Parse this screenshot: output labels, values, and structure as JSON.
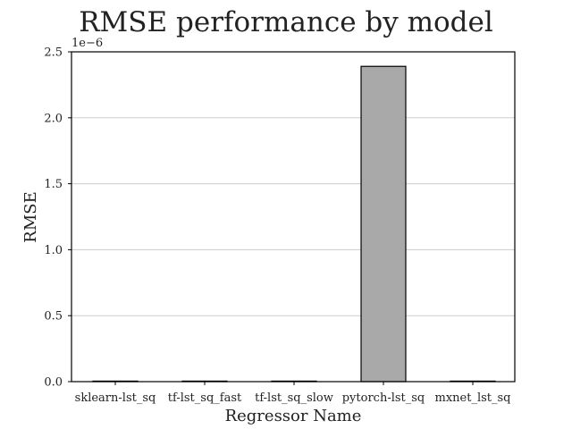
{
  "chart_data": {
    "type": "bar",
    "title": "RMSE performance by model",
    "xlabel": "Regressor Name",
    "ylabel": "RMSE",
    "y_offset_label": "1e−6",
    "categories": [
      "sklearn-lst_sq",
      "tf-lst_sq_fast",
      "tf-lst_sq_slow",
      "pytorch-lst_sq",
      "mxnet_lst_sq"
    ],
    "values": [
      0.0,
      0.0,
      0.0,
      2.39e-06,
      0.0
    ],
    "ylim": [
      0,
      2.5e-06
    ],
    "yticks": [
      0,
      5e-07,
      1e-06,
      1.5e-06,
      2e-06,
      2.5e-06
    ],
    "ytick_labels": [
      "0.0",
      "0.5",
      "1.0",
      "1.5",
      "2.0",
      "2.5"
    ],
    "grid": "y",
    "bar_color": "#a9a9a9",
    "bar_edge_color": "#000000"
  }
}
